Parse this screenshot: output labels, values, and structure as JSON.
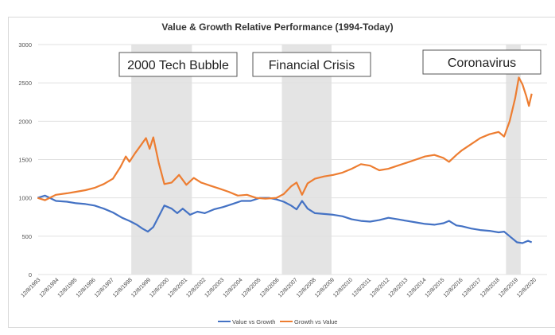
{
  "chart_data": {
    "type": "line",
    "title": "Value & Growth Relative Performance (1994-Today)",
    "xlabel": "",
    "ylabel": "",
    "ylim": [
      0,
      3000
    ],
    "yticks": [
      0,
      500,
      1000,
      1500,
      2000,
      2500,
      3000
    ],
    "grid": true,
    "legend_position": "bottom",
    "x": [
      "12/8/1993",
      "12/8/1994",
      "12/8/1995",
      "12/8/1996",
      "12/8/1997",
      "12/8/1998",
      "12/8/1999",
      "12/8/2000",
      "12/8/2001",
      "12/8/2002",
      "12/8/2003",
      "12/8/2004",
      "12/8/2005",
      "12/8/2006",
      "12/8/2007",
      "12/8/2008",
      "12/8/2009",
      "12/8/2010",
      "12/8/2011",
      "12/8/2012",
      "12/8/2013",
      "12/8/2014",
      "12/8/2015",
      "12/8/2016",
      "12/8/2017",
      "12/8/2018",
      "12/8/2019",
      "12/8/2020"
    ],
    "series": [
      {
        "name": "Value vs Growth",
        "color": "#4472c4",
        "points": [
          [
            1993.9,
            1000
          ],
          [
            1994.3,
            1030
          ],
          [
            1994.9,
            960
          ],
          [
            1995.5,
            950
          ],
          [
            1996.0,
            930
          ],
          [
            1996.5,
            920
          ],
          [
            1997.0,
            900
          ],
          [
            1997.5,
            860
          ],
          [
            1998.0,
            810
          ],
          [
            1998.5,
            740
          ],
          [
            1998.9,
            700
          ],
          [
            1999.3,
            650
          ],
          [
            1999.6,
            600
          ],
          [
            1999.9,
            560
          ],
          [
            2000.2,
            620
          ],
          [
            2000.5,
            760
          ],
          [
            2000.8,
            900
          ],
          [
            2001.2,
            860
          ],
          [
            2001.5,
            800
          ],
          [
            2001.8,
            860
          ],
          [
            2002.2,
            780
          ],
          [
            2002.6,
            820
          ],
          [
            2003.0,
            800
          ],
          [
            2003.5,
            850
          ],
          [
            2004.0,
            880
          ],
          [
            2004.5,
            920
          ],
          [
            2005.0,
            960
          ],
          [
            2005.5,
            960
          ],
          [
            2006.0,
            1000
          ],
          [
            2006.5,
            1000
          ],
          [
            2006.9,
            980
          ],
          [
            2007.3,
            950
          ],
          [
            2007.7,
            900
          ],
          [
            2008.0,
            850
          ],
          [
            2008.3,
            960
          ],
          [
            2008.6,
            860
          ],
          [
            2009.0,
            800
          ],
          [
            2009.5,
            790
          ],
          [
            2010.0,
            780
          ],
          [
            2010.5,
            760
          ],
          [
            2011.0,
            720
          ],
          [
            2011.5,
            700
          ],
          [
            2012.0,
            690
          ],
          [
            2012.5,
            710
          ],
          [
            2013.0,
            740
          ],
          [
            2013.5,
            720
          ],
          [
            2014.0,
            700
          ],
          [
            2014.5,
            680
          ],
          [
            2015.0,
            660
          ],
          [
            2015.5,
            650
          ],
          [
            2016.0,
            670
          ],
          [
            2016.3,
            700
          ],
          [
            2016.7,
            640
          ],
          [
            2017.0,
            630
          ],
          [
            2017.5,
            600
          ],
          [
            2018.0,
            580
          ],
          [
            2018.5,
            570
          ],
          [
            2019.0,
            550
          ],
          [
            2019.3,
            560
          ],
          [
            2019.7,
            480
          ],
          [
            2020.0,
            420
          ],
          [
            2020.3,
            410
          ],
          [
            2020.6,
            440
          ],
          [
            2020.8,
            420
          ]
        ]
      },
      {
        "name": "Growth vs Value",
        "color": "#ed7d31",
        "points": [
          [
            1993.9,
            1000
          ],
          [
            1994.3,
            970
          ],
          [
            1994.9,
            1040
          ],
          [
            1995.5,
            1060
          ],
          [
            1996.0,
            1080
          ],
          [
            1996.5,
            1100
          ],
          [
            1997.0,
            1130
          ],
          [
            1997.5,
            1180
          ],
          [
            1998.0,
            1250
          ],
          [
            1998.4,
            1400
          ],
          [
            1998.7,
            1540
          ],
          [
            1998.9,
            1470
          ],
          [
            1999.2,
            1580
          ],
          [
            1999.5,
            1680
          ],
          [
            1999.8,
            1780
          ],
          [
            2000.0,
            1640
          ],
          [
            2000.2,
            1790
          ],
          [
            2000.5,
            1450
          ],
          [
            2000.8,
            1180
          ],
          [
            2001.2,
            1200
          ],
          [
            2001.6,
            1300
          ],
          [
            2002.0,
            1170
          ],
          [
            2002.4,
            1260
          ],
          [
            2002.8,
            1200
          ],
          [
            2003.3,
            1160
          ],
          [
            2003.8,
            1120
          ],
          [
            2004.3,
            1080
          ],
          [
            2004.8,
            1030
          ],
          [
            2005.3,
            1040
          ],
          [
            2005.8,
            1000
          ],
          [
            2006.3,
            990
          ],
          [
            2006.9,
            1000
          ],
          [
            2007.3,
            1050
          ],
          [
            2007.7,
            1150
          ],
          [
            2008.0,
            1200
          ],
          [
            2008.3,
            1040
          ],
          [
            2008.6,
            1190
          ],
          [
            2009.0,
            1250
          ],
          [
            2009.5,
            1280
          ],
          [
            2010.0,
            1300
          ],
          [
            2010.5,
            1330
          ],
          [
            2011.0,
            1380
          ],
          [
            2011.5,
            1440
          ],
          [
            2012.0,
            1420
          ],
          [
            2012.5,
            1360
          ],
          [
            2013.0,
            1380
          ],
          [
            2013.5,
            1420
          ],
          [
            2014.0,
            1460
          ],
          [
            2014.5,
            1500
          ],
          [
            2015.0,
            1540
          ],
          [
            2015.5,
            1560
          ],
          [
            2016.0,
            1520
          ],
          [
            2016.3,
            1470
          ],
          [
            2016.7,
            1560
          ],
          [
            2017.0,
            1620
          ],
          [
            2017.5,
            1700
          ],
          [
            2018.0,
            1780
          ],
          [
            2018.5,
            1830
          ],
          [
            2019.0,
            1860
          ],
          [
            2019.3,
            1800
          ],
          [
            2019.6,
            2000
          ],
          [
            2019.9,
            2300
          ],
          [
            2020.1,
            2570
          ],
          [
            2020.3,
            2480
          ],
          [
            2020.5,
            2330
          ],
          [
            2020.65,
            2200
          ],
          [
            2020.8,
            2360
          ]
        ]
      }
    ],
    "shaded_periods": [
      {
        "label": "2000 Tech Bubble",
        "start": 1999.0,
        "end": 2002.3
      },
      {
        "label": "Financial Crisis",
        "start": 2007.2,
        "end": 2009.9
      },
      {
        "label": "Coronavirus",
        "start": 2019.4,
        "end": 2020.2
      }
    ],
    "annotations": [
      "2000 Tech Bubble",
      "Financial Crisis",
      "Coronavirus"
    ]
  }
}
